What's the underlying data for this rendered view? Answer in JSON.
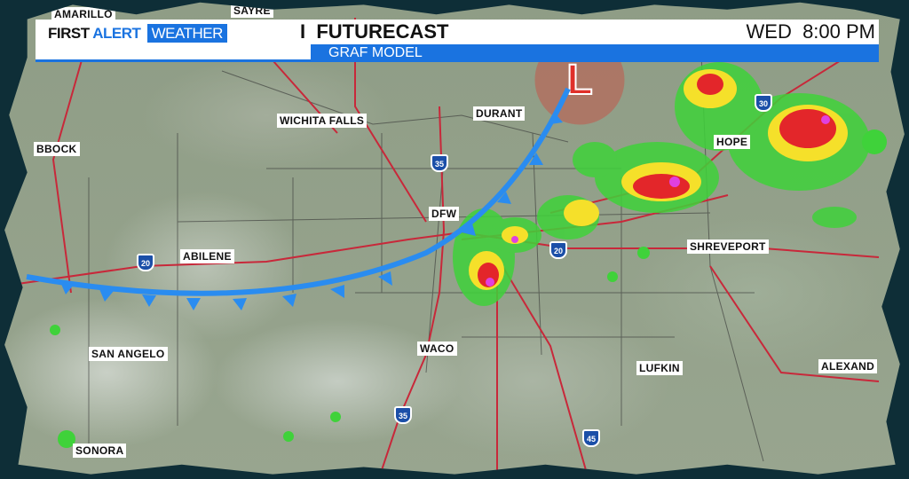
{
  "banner": {
    "brand_first": "FIRST",
    "brand_alert": "ALERT",
    "brand_weather": "WEATHER",
    "separator": "I",
    "title": "FUTURECAST",
    "subtitle": "GRAF MODEL",
    "day": "WED",
    "time": "8:00 PM"
  },
  "cities": [
    "AMARILLO",
    "SAYRE",
    "WICHITA FALLS",
    "DURANT",
    "BBOCK",
    "HOPE",
    "DFW",
    "ABILENE",
    "SHREVEPORT",
    "SAN ANGELO",
    "WACO",
    "LUFKIN",
    "ALEXAND",
    "SONORA"
  ],
  "interstates": [
    "30",
    "35",
    "20",
    "20",
    "35",
    "45"
  ],
  "pressure_center": "L",
  "colors": {
    "front": "#2a8cf0",
    "low": "#e0302a",
    "brand_blue": "#1a73e0",
    "background": "#0e2e37"
  }
}
